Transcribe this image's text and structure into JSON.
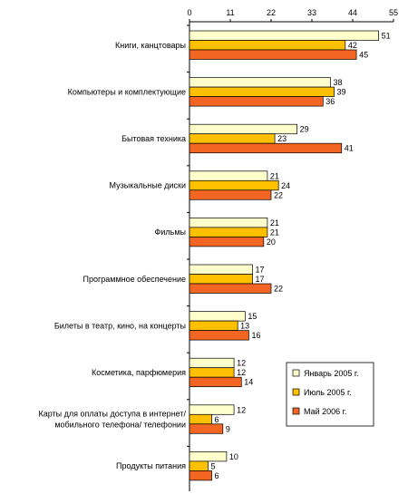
{
  "chart_data": {
    "type": "bar",
    "orientation": "horizontal",
    "categories": [
      [
        "Книги, канцтовары"
      ],
      [
        "Компьютеры и комплектующие"
      ],
      [
        "Бытовая техника"
      ],
      [
        "Музыкальные диски"
      ],
      [
        "Фильмы"
      ],
      [
        "Программное обеспечение"
      ],
      [
        "Билеты в театр, кино, на концерты"
      ],
      [
        "Косметика, парфюмерия"
      ],
      [
        "Карты для оплаты доступа в интернет/",
        "мобильного телефона/ телефонии"
      ],
      [
        "Продукты питания"
      ]
    ],
    "series": [
      {
        "name": "Январь 2005 г.",
        "color": "#ffffcc",
        "values": [
          51,
          38,
          29,
          21,
          21,
          17,
          15,
          12,
          12,
          10
        ]
      },
      {
        "name": "Июль 2005 г.",
        "color": "#ffc000",
        "values": [
          42,
          39,
          23,
          24,
          21,
          17,
          13,
          12,
          6,
          5
        ]
      },
      {
        "name": "Май 2006 г.",
        "color": "#f26522",
        "values": [
          45,
          36,
          41,
          22,
          20,
          22,
          16,
          14,
          9,
          6
        ]
      }
    ],
    "xlim": [
      0,
      55
    ],
    "xticks": [
      0,
      11,
      22,
      33,
      44,
      55
    ],
    "grid": false,
    "legend_position": "bottom-right"
  }
}
